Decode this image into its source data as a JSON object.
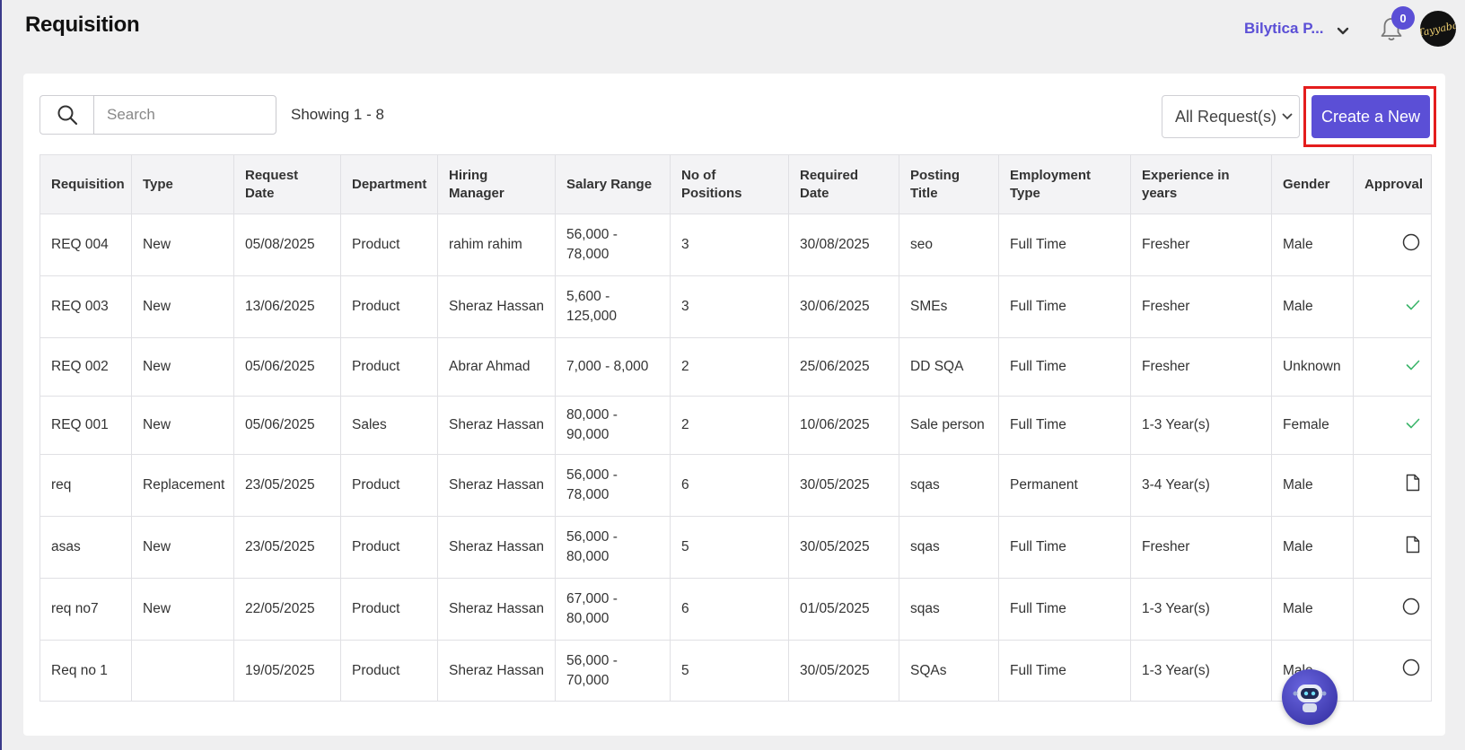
{
  "header": {
    "title": "Requisition",
    "company": "Bilytica P...",
    "notification_count": "0",
    "avatar_text": "Tayyaba"
  },
  "toolbar": {
    "search_placeholder": "Search",
    "showing": "Showing 1 - 8",
    "filter_label": "All Request(s)",
    "create_label": "Create a New"
  },
  "table": {
    "columns": [
      "Requisition",
      "Type",
      "Request Date",
      "Department",
      "Hiring Manager",
      "Salary  Range",
      "No  of Positions",
      "Required Date",
      "Posting Title",
      "Employment Type",
      "Experience  in years",
      "Gender",
      "Approval"
    ],
    "rows": [
      [
        "REQ 004",
        "New",
        "05/08/2025",
        "Product",
        "rahim rahim",
        "56,000 - 78,000",
        "3",
        "30/08/2025",
        "seo",
        "Full Time",
        "Fresher",
        "Male",
        "pending"
      ],
      [
        "REQ 003",
        "New",
        "13/06/2025",
        "Product",
        "Sheraz Hassan",
        "5,600 - 125,000",
        "3",
        "30/06/2025",
        "SMEs",
        "Full Time",
        "Fresher",
        "Male",
        "approved"
      ],
      [
        "REQ 002",
        "New",
        "05/06/2025",
        "Product",
        "Abrar Ahmad",
        "7,000 - 8,000",
        "2",
        "25/06/2025",
        "DD SQA",
        "Full Time",
        "Fresher",
        "Unknown",
        "approved"
      ],
      [
        "REQ 001",
        "New",
        "05/06/2025",
        "Sales",
        "Sheraz Hassan",
        "80,000 - 90,000",
        "2",
        "10/06/2025",
        "Sale person",
        "Full Time",
        "1-3 Year(s)",
        "Female",
        "approved"
      ],
      [
        "req",
        "Replacement",
        "23/05/2025",
        "Product",
        "Sheraz Hassan",
        "56,000 - 78,000",
        "6",
        "30/05/2025",
        "sqas",
        "Permanent",
        "3-4 Year(s)",
        "Male",
        "draft"
      ],
      [
        "asas",
        "New",
        "23/05/2025",
        "Product",
        "Sheraz Hassan",
        "56,000 - 80,000",
        "5",
        "30/05/2025",
        "sqas",
        "Full Time",
        "Fresher",
        "Male",
        "draft"
      ],
      [
        "req no7",
        "New",
        "22/05/2025",
        "Product",
        "Sheraz Hassan",
        "67,000 - 80,000",
        "6",
        "01/05/2025",
        "sqas",
        "Full Time",
        "1-3 Year(s)",
        "Male",
        "pending"
      ],
      [
        "Req no 1",
        "",
        "19/05/2025",
        "Product",
        "Sheraz Hassan",
        "56,000 - 70,000",
        "5",
        "30/05/2025",
        "SQAs",
        "Full Time",
        "1-3 Year(s)",
        "Male",
        "pending"
      ]
    ]
  },
  "colors": {
    "accent": "#5b4fd6",
    "approved": "#3bb56a",
    "highlight": "#e41d1d"
  },
  "icons": {
    "pending": "circle-outline-icon",
    "approved": "check-icon",
    "draft": "document-icon"
  }
}
